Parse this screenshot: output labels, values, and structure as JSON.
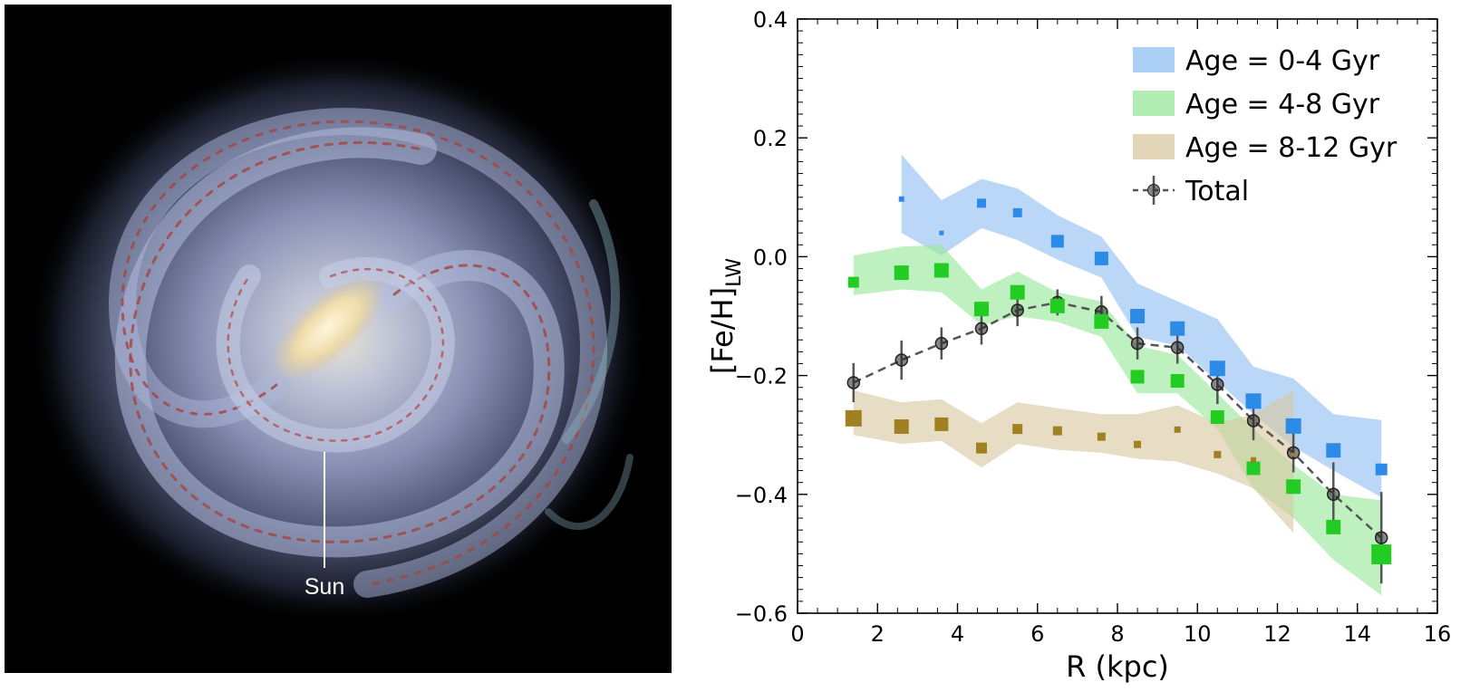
{
  "galaxy": {
    "caption": "Sun"
  },
  "chart_data": {
    "type": "line",
    "xlabel": "R (kpc)",
    "ylabel_main": "[Fe/H]",
    "ylabel_sub": "LW",
    "xlim": [
      0,
      16
    ],
    "ylim": [
      -0.6,
      0.4
    ],
    "xticks": [
      0,
      2,
      4,
      6,
      8,
      10,
      12,
      14,
      16
    ],
    "xtick_labels": [
      "0",
      "2",
      "4",
      "6",
      "8",
      "10",
      "12",
      "14",
      "16"
    ],
    "yticks": [
      -0.6,
      -0.4,
      -0.2,
      0.0,
      0.2,
      0.4
    ],
    "ytick_labels": [
      "−0.6",
      "−0.4",
      "−0.2",
      "0.0",
      "0.2",
      "0.4"
    ],
    "grid": false,
    "legend_position": "top-right",
    "series": [
      {
        "name": "Age = 0-4 Gyr",
        "style": "band+squares",
        "fill": "#8fbff2",
        "marker": "#2d8be8",
        "x": [
          2.6,
          3.6,
          4.6,
          5.5,
          6.5,
          7.6,
          8.5,
          9.5,
          10.5,
          11.4,
          12.4,
          13.4,
          14.6
        ],
        "values": [
          0.097,
          0.04,
          0.09,
          0.074,
          0.026,
          -0.003,
          -0.1,
          -0.121,
          -0.188,
          -0.243,
          -0.285,
          -0.326,
          -0.358
        ],
        "band_upper": [
          0.172,
          0.095,
          0.131,
          0.115,
          0.07,
          0.034,
          -0.045,
          -0.075,
          -0.105,
          -0.185,
          -0.205,
          -0.265,
          -0.275
        ],
        "band_lower": [
          0.04,
          0.002,
          0.048,
          0.028,
          -0.005,
          -0.035,
          -0.135,
          -0.15,
          -0.21,
          -0.265,
          -0.32,
          -0.36,
          -0.405
        ],
        "marker_sizes": [
          6,
          5,
          10,
          10,
          14,
          15,
          16,
          16,
          17,
          17,
          17,
          16,
          13
        ]
      },
      {
        "name": "Age = 4-8 Gyr",
        "style": "band+squares",
        "fill": "#98e89a",
        "marker": "#22cc22",
        "x": [
          1.4,
          2.6,
          3.6,
          4.6,
          5.5,
          6.5,
          7.6,
          8.5,
          9.5,
          10.5,
          11.4,
          12.4,
          13.4,
          14.6
        ],
        "values": [
          -0.043,
          -0.027,
          -0.023,
          -0.088,
          -0.06,
          -0.083,
          -0.109,
          -0.202,
          -0.209,
          -0.27,
          -0.356,
          -0.387,
          -0.455,
          -0.501
        ],
        "band_upper": [
          0.002,
          0.017,
          0.02,
          -0.055,
          -0.025,
          -0.06,
          -0.075,
          -0.15,
          -0.165,
          -0.23,
          -0.29,
          -0.35,
          -0.4,
          -0.41
        ],
        "band_lower": [
          -0.065,
          -0.055,
          -0.06,
          -0.115,
          -0.1,
          -0.11,
          -0.135,
          -0.23,
          -0.23,
          -0.29,
          -0.39,
          -0.44,
          -0.51,
          -0.57
        ],
        "marker_sizes": [
          12,
          16,
          16,
          16,
          16,
          16,
          16,
          15,
          15,
          15,
          15,
          16,
          16,
          22
        ]
      },
      {
        "name": "Age = 8-12 Gyr",
        "style": "band+squares",
        "fill": "#d9c8a0",
        "marker": "#a08020",
        "x": [
          1.4,
          2.6,
          3.6,
          4.6,
          5.5,
          6.5,
          7.6,
          8.5,
          9.5,
          10.5,
          11.4,
          12.4
        ],
        "values": [
          -0.272,
          -0.286,
          -0.282,
          -0.322,
          -0.29,
          -0.293,
          -0.303,
          -0.316,
          -0.291,
          -0.333,
          -0.342,
          -0.333
        ],
        "band_upper": [
          -0.225,
          -0.245,
          -0.24,
          -0.28,
          -0.245,
          -0.255,
          -0.265,
          -0.265,
          -0.25,
          -0.28,
          -0.265,
          -0.225
        ],
        "band_lower": [
          -0.3,
          -0.315,
          -0.31,
          -0.355,
          -0.315,
          -0.325,
          -0.33,
          -0.34,
          -0.345,
          -0.365,
          -0.39,
          -0.465
        ],
        "marker_sizes": [
          18,
          16,
          15,
          12,
          11,
          10,
          9,
          8,
          7,
          8,
          6,
          4
        ]
      },
      {
        "name": "Total",
        "style": "errorbar-dashed",
        "color": "#555555",
        "x": [
          1.4,
          2.6,
          3.6,
          4.6,
          5.5,
          6.5,
          7.6,
          8.5,
          9.5,
          10.5,
          11.4,
          12.4,
          13.4,
          14.6
        ],
        "values": [
          -0.212,
          -0.174,
          -0.146,
          -0.121,
          -0.09,
          -0.077,
          -0.093,
          -0.146,
          -0.153,
          -0.215,
          -0.276,
          -0.33,
          -0.4,
          -0.473
        ],
        "errors": [
          0.033,
          0.033,
          0.027,
          0.027,
          0.027,
          0.022,
          0.027,
          0.027,
          0.027,
          0.033,
          0.033,
          0.033,
          0.054,
          0.077
        ]
      }
    ]
  }
}
